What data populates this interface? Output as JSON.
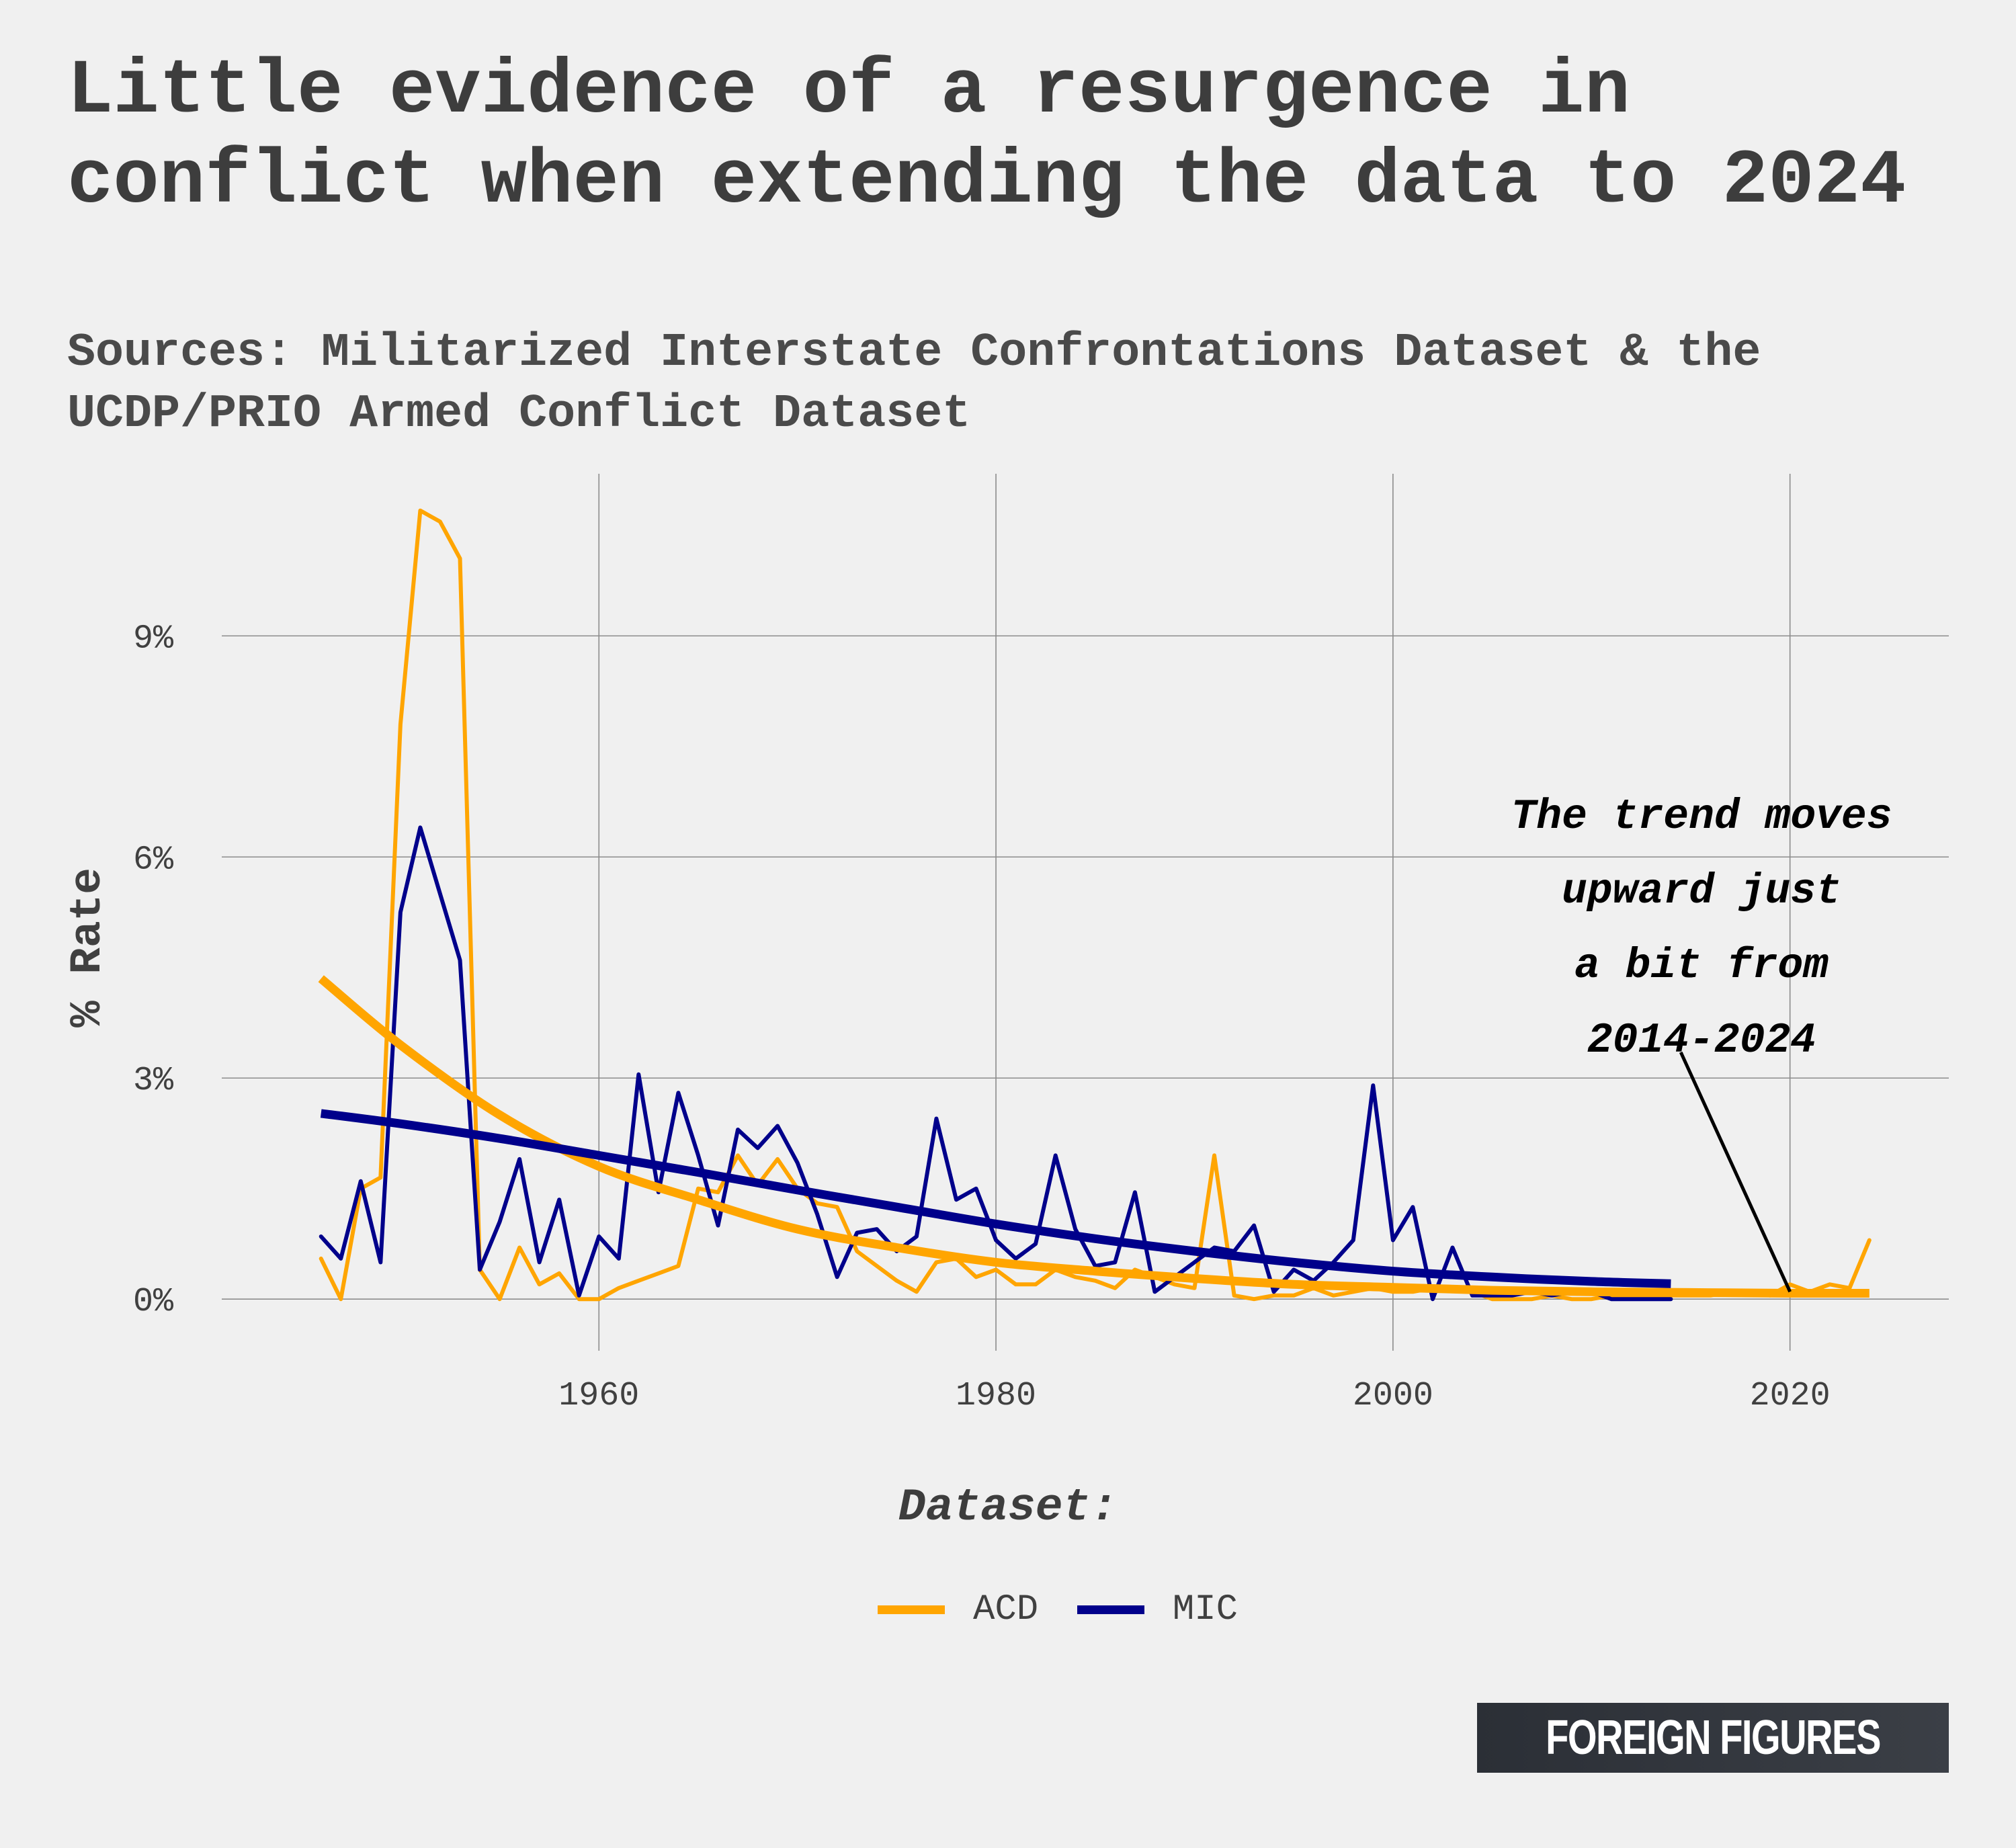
{
  "title": "Little evidence of a resurgence in conflict when extending the data to 2024",
  "subtitle": "Sources: Militarized Interstate Confrontations Dataset & the UCDP/PRIO Armed Conflict Dataset",
  "brand": "FOREIGN FIGURES",
  "colors": {
    "background": "#f0f0f0",
    "grid": "#8c8c8c",
    "acd": "#FFA500",
    "mic": "#00008B",
    "text": "#404040",
    "annotation": "#000000"
  },
  "chart_data": {
    "type": "line",
    "title": "Little evidence of a resurgence in conflict when extending the data to 2024",
    "xlabel": "",
    "ylabel": "% Rate",
    "xlim": [
      1941,
      2028
    ],
    "ylim": [
      -0.7,
      11.2
    ],
    "xticks": [
      1960,
      1980,
      2000,
      2020
    ],
    "xtick_labels": [
      "1960",
      "1980",
      "2000",
      "2020"
    ],
    "yticks": [
      0,
      3,
      6,
      9
    ],
    "ytick_labels": [
      "0%",
      "3%",
      "6%",
      "9%"
    ],
    "grid": true,
    "legend_title": "Dataset:",
    "legend_position": "bottom",
    "series": [
      {
        "name": "ACD",
        "color": "#FFA500",
        "x": [
          1946,
          1947,
          1948,
          1949,
          1950,
          1951,
          1952,
          1953,
          1954,
          1955,
          1956,
          1957,
          1958,
          1959,
          1960,
          1961,
          1962,
          1963,
          1964,
          1965,
          1966,
          1967,
          1968,
          1969,
          1970,
          1971,
          1972,
          1973,
          1974,
          1975,
          1976,
          1977,
          1978,
          1979,
          1980,
          1981,
          1982,
          1983,
          1984,
          1985,
          1986,
          1987,
          1988,
          1989,
          1990,
          1991,
          1992,
          1993,
          1994,
          1995,
          1996,
          1997,
          1998,
          1999,
          2000,
          2001,
          2002,
          2003,
          2004,
          2005,
          2006,
          2007,
          2008,
          2009,
          2010,
          2011,
          2012,
          2013,
          2014,
          2015,
          2016,
          2017,
          2018,
          2019,
          2020,
          2021,
          2022,
          2023,
          2024
        ],
        "values": [
          0.55,
          0.0,
          1.5,
          1.65,
          7.8,
          10.7,
          10.55,
          10.05,
          0.4,
          0.0,
          0.7,
          0.2,
          0.35,
          0.0,
          0.0,
          0.15,
          0.25,
          0.35,
          0.45,
          1.5,
          1.45,
          1.95,
          1.55,
          1.9,
          1.5,
          1.3,
          1.25,
          0.65,
          0.45,
          0.25,
          0.1,
          0.5,
          0.55,
          0.3,
          0.4,
          0.2,
          0.2,
          0.4,
          0.3,
          0.25,
          0.15,
          0.4,
          0.3,
          0.2,
          0.15,
          1.95,
          0.05,
          0.0,
          0.05,
          0.05,
          0.15,
          0.05,
          0.1,
          0.15,
          0.1,
          0.1,
          0.15,
          0.15,
          0.1,
          0.0,
          0.0,
          0.0,
          0.05,
          0.0,
          0.0,
          0.05,
          0.05,
          0.05,
          0.05,
          0.05,
          0.05,
          0.1,
          0.1,
          0.05,
          0.2,
          0.1,
          0.2,
          0.15,
          0.8
        ]
      },
      {
        "name": "MIC",
        "color": "#00008B",
        "x": [
          1946,
          1947,
          1948,
          1949,
          1950,
          1951,
          1952,
          1953,
          1954,
          1955,
          1956,
          1957,
          1958,
          1959,
          1960,
          1961,
          1962,
          1963,
          1964,
          1965,
          1966,
          1967,
          1968,
          1969,
          1970,
          1971,
          1972,
          1973,
          1974,
          1975,
          1976,
          1977,
          1978,
          1979,
          1980,
          1981,
          1982,
          1983,
          1984,
          1985,
          1986,
          1987,
          1988,
          1989,
          1990,
          1991,
          1992,
          1993,
          1994,
          1995,
          1996,
          1997,
          1998,
          1999,
          2000,
          2001,
          2002,
          2003,
          2004,
          2005,
          2006,
          2007,
          2008,
          2009,
          2010,
          2011,
          2012,
          2013,
          2014
        ],
        "values": [
          0.85,
          0.55,
          1.6,
          0.5,
          5.25,
          6.4,
          5.5,
          4.6,
          0.4,
          1.05,
          1.9,
          0.5,
          1.35,
          0.05,
          0.85,
          0.55,
          3.05,
          1.45,
          2.8,
          1.95,
          1.0,
          2.3,
          2.05,
          2.35,
          1.85,
          1.15,
          0.3,
          0.9,
          0.95,
          0.65,
          0.85,
          2.45,
          1.35,
          1.5,
          0.8,
          0.55,
          0.75,
          1.95,
          0.95,
          0.45,
          0.5,
          1.45,
          0.1,
          0.3,
          0.5,
          0.7,
          0.65,
          1.0,
          0.1,
          0.4,
          0.25,
          0.5,
          0.8,
          2.9,
          0.8,
          1.25,
          0.0,
          0.7,
          0.05,
          0.05,
          0.05,
          0.1,
          0.05,
          0.1,
          0.1,
          0.0,
          0.0,
          0.0,
          0.0
        ]
      }
    ],
    "trend_lines": [
      {
        "series": "ACD",
        "color": "#FFA500",
        "x": [
          1946,
          1950,
          1955,
          1960,
          1965,
          1970,
          1975,
          1980,
          1985,
          1990,
          1995,
          2000,
          2005,
          2010,
          2015,
          2020,
          2024
        ],
        "values": [
          4.35,
          3.45,
          2.5,
          1.8,
          1.35,
          0.95,
          0.7,
          0.5,
          0.38,
          0.28,
          0.2,
          0.16,
          0.12,
          0.1,
          0.09,
          0.08,
          0.08
        ]
      },
      {
        "series": "MIC",
        "color": "#00008B",
        "x": [
          1946,
          1950,
          1955,
          1960,
          1965,
          1970,
          1975,
          1980,
          1985,
          1990,
          1995,
          2000,
          2005,
          2010,
          2014
        ],
        "values": [
          2.52,
          2.38,
          2.18,
          1.95,
          1.72,
          1.48,
          1.25,
          1.02,
          0.82,
          0.65,
          0.5,
          0.38,
          0.3,
          0.24,
          0.21
        ]
      }
    ],
    "annotation": {
      "lines": [
        "The trend moves",
        "upward just",
        "a bit from",
        "2014-2024"
      ],
      "arrow_from": [
        2014.5,
        3.35
      ],
      "arrow_to": [
        2020,
        0.1
      ]
    }
  }
}
